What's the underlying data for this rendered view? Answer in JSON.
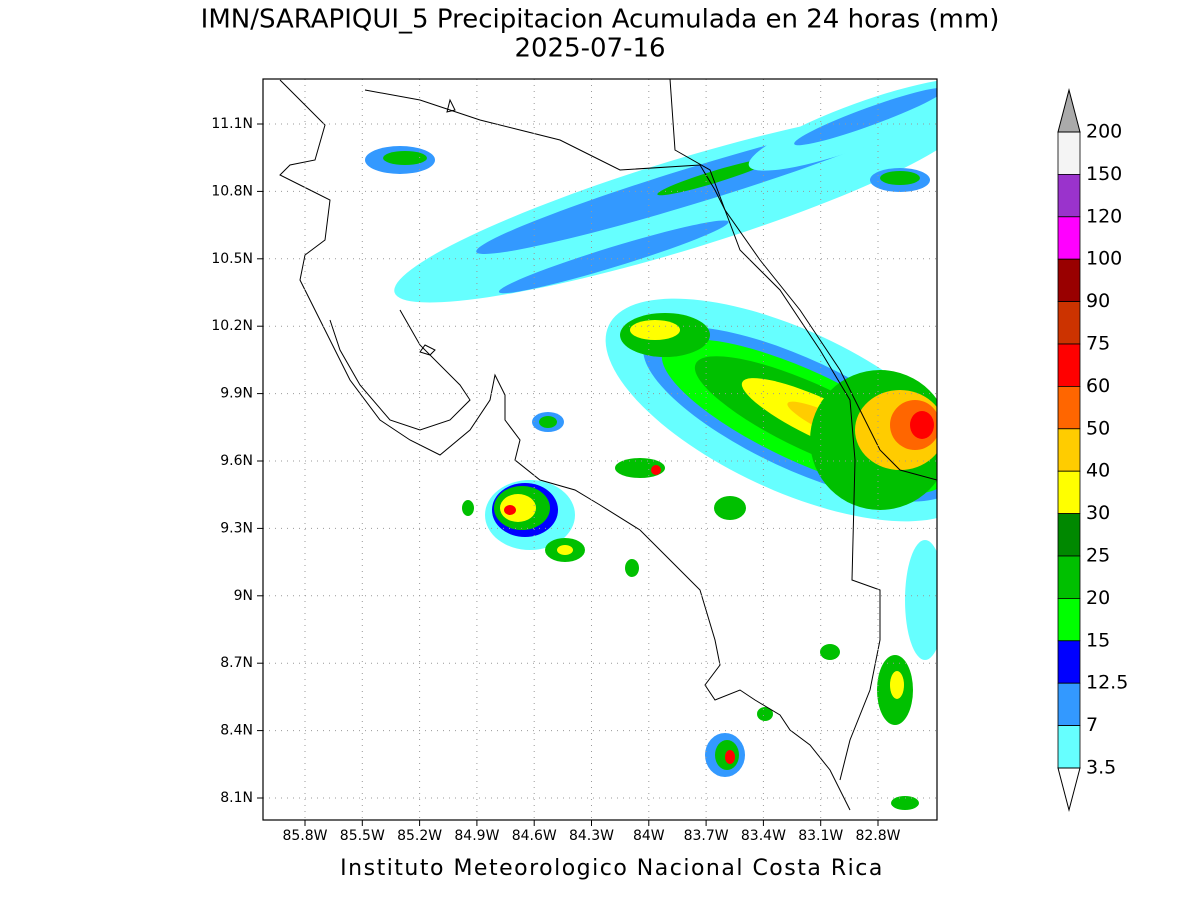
{
  "title": "IMN/SARAPIQUI_5 Precipitacion Acumulada en 24 horas (mm)",
  "subtitle": "2025-07-16",
  "map": {
    "lat_ticks": [
      "11.1N",
      "10.8N",
      "10.5N",
      "10.2N",
      "9.9N",
      "9.6N",
      "9.3N",
      "9N",
      "8.7N",
      "8.4N",
      "8.1N"
    ],
    "lon_ticks": [
      "85.8W",
      "85.5W",
      "85.2W",
      "84.9W",
      "84.6W",
      "84.3W",
      "84W",
      "83.7W",
      "83.4W",
      "83.1W",
      "82.8W"
    ]
  },
  "colorbar": {
    "levels": [
      200,
      150,
      120,
      100,
      90,
      75,
      60,
      50,
      40,
      30,
      25,
      20,
      15,
      12.5,
      7,
      3.5
    ],
    "colors": [
      "#f4f4f4",
      "#9a33cc",
      "#ff00ff",
      "#990000",
      "#cc3300",
      "#ff0000",
      "#ff6600",
      "#ffcc00",
      "#ffff00",
      "#008800",
      "#00c000",
      "#00ff00",
      "#0000ff",
      "#3399ff",
      "#66ffff"
    ],
    "over_color": "#aaaaaa",
    "under_color": "#ffffff"
  },
  "footer": "Instituto Meteorologico Nacional Costa Rica"
}
